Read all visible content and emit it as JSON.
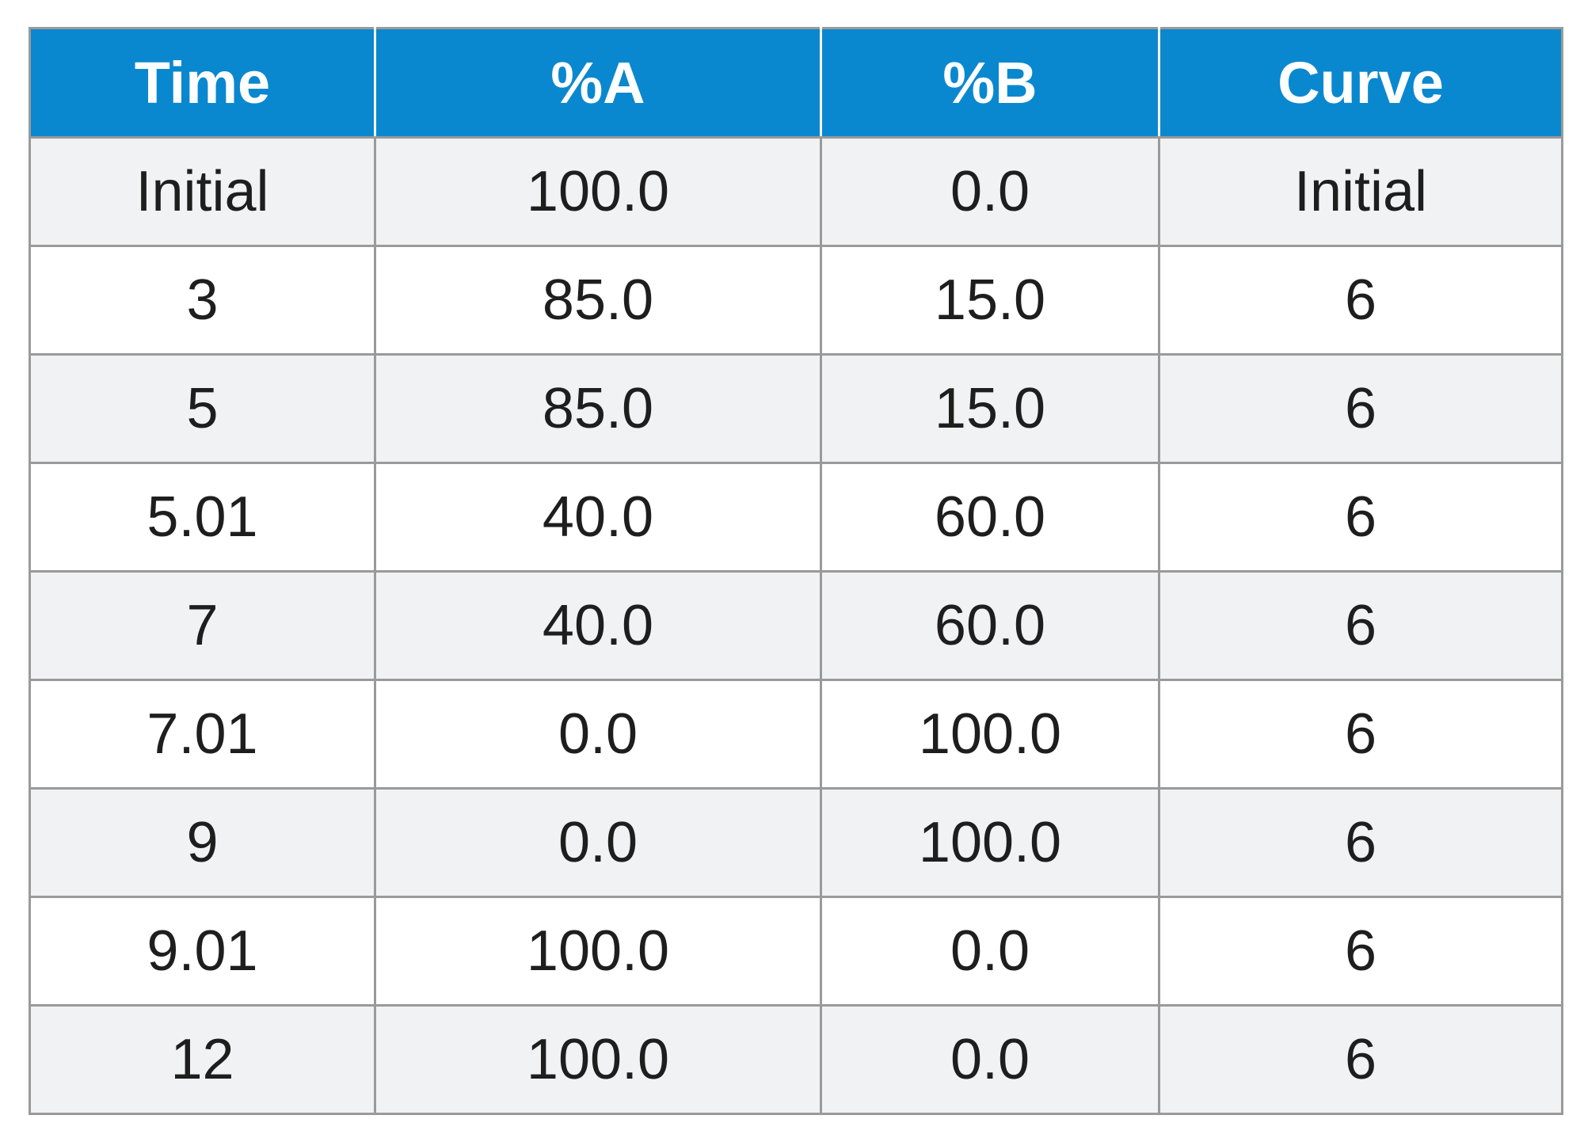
{
  "table": {
    "headers": [
      "Time",
      "%A",
      "%B",
      "Curve"
    ],
    "rows": [
      [
        "Initial",
        "100.0",
        "0.0",
        "Initial"
      ],
      [
        "3",
        "85.0",
        "15.0",
        "6"
      ],
      [
        "5",
        "85.0",
        "15.0",
        "6"
      ],
      [
        "5.01",
        "40.0",
        "60.0",
        "6"
      ],
      [
        "7",
        "40.0",
        "60.0",
        "6"
      ],
      [
        "7.01",
        "0.0",
        "100.0",
        "6"
      ],
      [
        "9",
        "0.0",
        "100.0",
        "6"
      ],
      [
        "9.01",
        "100.0",
        "0.0",
        "6"
      ],
      [
        "12",
        "100.0",
        "0.0",
        "6"
      ]
    ]
  },
  "colors": {
    "header_background": "#0a88cf",
    "header_text": "#ffffff",
    "row_shaded": "#f1f2f4",
    "row_plain": "#ffffff",
    "grid_line": "#9a9a9a",
    "cell_text": "#1e1e1e"
  }
}
